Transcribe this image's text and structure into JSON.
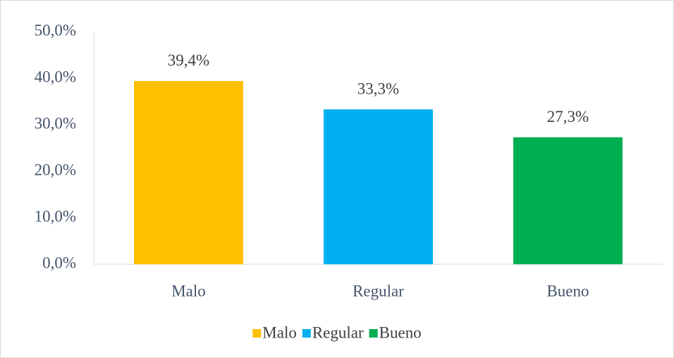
{
  "chart_data": {
    "type": "bar",
    "categories": [
      "Malo",
      "Regular",
      "Bueno"
    ],
    "values": [
      39.4,
      33.3,
      27.3
    ],
    "value_labels": [
      "39,4%",
      "33,3%",
      "27,3%"
    ],
    "colors": [
      "#ffc000",
      "#00b0f0",
      "#00b050"
    ],
    "ylim": [
      0,
      50
    ],
    "yticks": [
      {
        "value": 0,
        "label": "0,0%"
      },
      {
        "value": 10,
        "label": "10,0%"
      },
      {
        "value": 20,
        "label": "20,0%"
      },
      {
        "value": 30,
        "label": "30,0%"
      },
      {
        "value": 40,
        "label": "40,0%"
      },
      {
        "value": 50,
        "label": "50,0%"
      }
    ],
    "grid": false,
    "legend": "bottom"
  }
}
